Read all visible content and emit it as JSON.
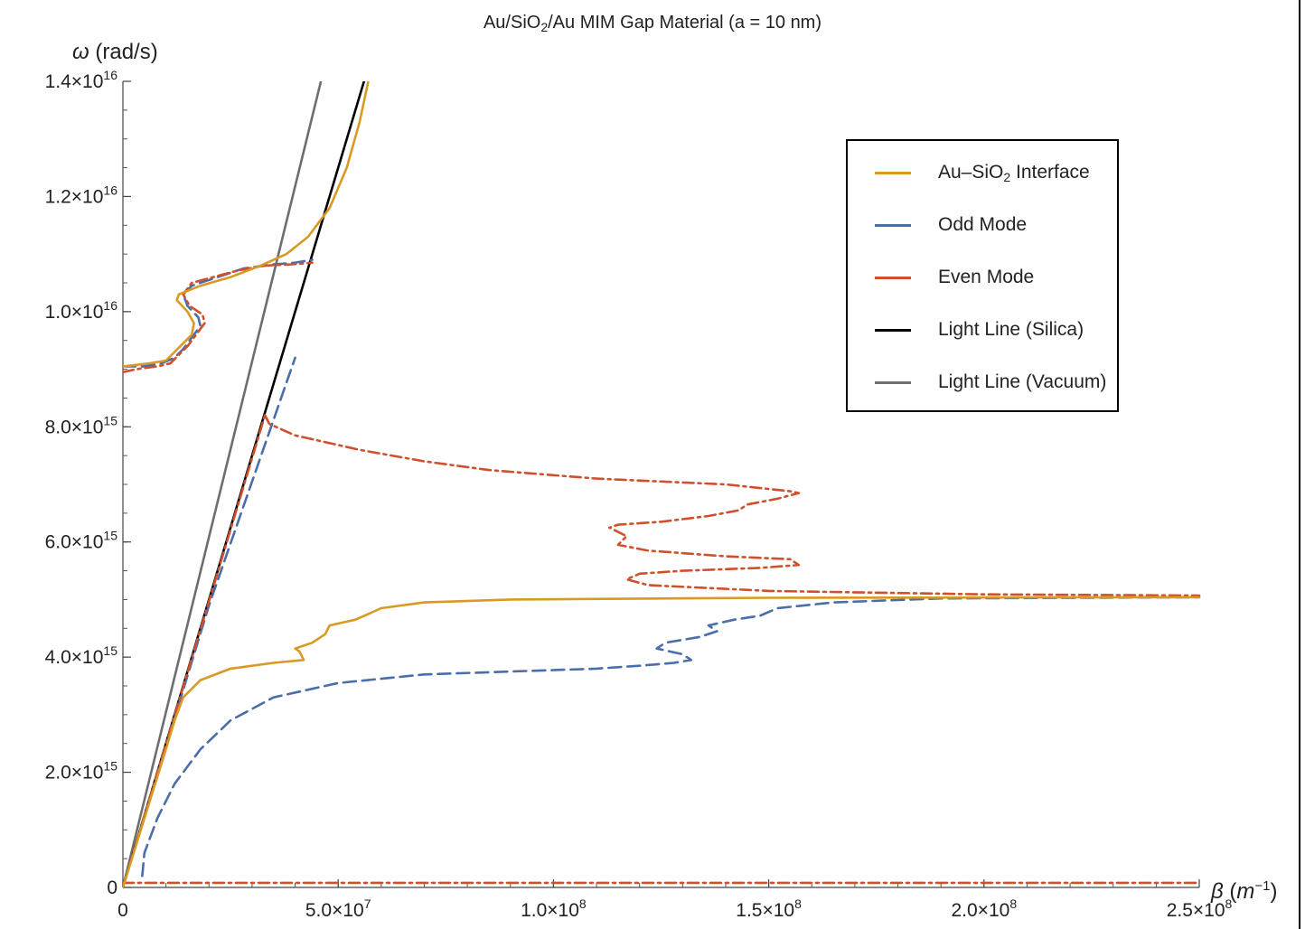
{
  "title": {
    "prefix": "Au/SiO",
    "sub": "2",
    "suffix": "/Au MIM Gap Material (a = 10 nm)"
  },
  "chart_data": {
    "type": "line",
    "xlabel": {
      "symbol": "β",
      "unit_open": " (",
      "unit_base": "m",
      "unit_exp": "−1",
      "unit_close": ")"
    },
    "ylabel": {
      "symbol": "ω",
      "unit": " (rad/s)"
    },
    "xlim": [
      0,
      250000000
    ],
    "ylim": [
      0,
      14000000000000000
    ],
    "xticks": [
      {
        "value": 0,
        "mant": "0",
        "exp": ""
      },
      {
        "value": 50000000,
        "mant": "5.0×10",
        "exp": "7"
      },
      {
        "value": 100000000,
        "mant": "1.0×10",
        "exp": "8"
      },
      {
        "value": 150000000,
        "mant": "1.5×10",
        "exp": "8"
      },
      {
        "value": 200000000,
        "mant": "2.0×10",
        "exp": "8"
      },
      {
        "value": 250000000,
        "mant": "2.5×10",
        "exp": "8"
      }
    ],
    "yticks": [
      {
        "value": 0,
        "mant": "0",
        "exp": ""
      },
      {
        "value": 2000000000000000,
        "mant": "2.0×10",
        "exp": "15"
      },
      {
        "value": 4000000000000000,
        "mant": "4.0×10",
        "exp": "15"
      },
      {
        "value": 6000000000000000,
        "mant": "6.0×10",
        "exp": "15"
      },
      {
        "value": 8000000000000000,
        "mant": "8.0×10",
        "exp": "15"
      },
      {
        "value": 10000000000000000,
        "mant": "1.0×10",
        "exp": "16"
      },
      {
        "value": 12000000000000000,
        "mant": "1.2×10",
        "exp": "16"
      },
      {
        "value": 14000000000000000,
        "mant": "1.4×10",
        "exp": "16"
      }
    ],
    "x_unit": 1000000,
    "y_unit": 1000000000000000,
    "legend_position": "top-right",
    "series": [
      {
        "name": "Light Line (Vacuum)",
        "color": "#6e6e6e",
        "dash": "solid",
        "segments": [
          [
            [
              0,
              0
            ],
            [
              46.0,
              14.0
            ]
          ]
        ]
      },
      {
        "name": "Light Line (Silica)",
        "color": "#000000",
        "dash": "solid",
        "segments": [
          [
            [
              0,
              0
            ],
            [
              56.0,
              14.0
            ]
          ]
        ]
      },
      {
        "name": "Odd Mode",
        "color": "#4a6ea9",
        "dash": "long-dash",
        "segments": [
          [
            [
              4.5,
              0.2
            ],
            [
              5,
              0.6
            ],
            [
              8,
              1.2
            ],
            [
              12,
              1.8
            ],
            [
              18,
              2.4
            ],
            [
              25,
              2.9
            ],
            [
              35,
              3.3
            ],
            [
              50,
              3.55
            ],
            [
              70,
              3.7
            ],
            [
              90,
              3.75
            ],
            [
              110,
              3.8
            ],
            [
              120,
              3.85
            ],
            [
              128,
              3.9
            ],
            [
              132,
              3.95
            ],
            [
              130,
              4.05
            ],
            [
              124,
              4.15
            ],
            [
              126,
              4.25
            ],
            [
              134,
              4.35
            ],
            [
              138,
              4.45
            ],
            [
              136,
              4.55
            ],
            [
              142,
              4.65
            ],
            [
              148,
              4.72
            ],
            [
              152,
              4.85
            ],
            [
              165,
              4.95
            ],
            [
              190,
              5.02
            ],
            [
              250,
              5.04
            ]
          ],
          [
            [
              0,
              0
            ],
            [
              20,
              4.9
            ],
            [
              40,
              9.2
            ]
          ],
          [
            [
              0,
              9.05
            ],
            [
              5,
              9.05
            ],
            [
              9,
              9.1
            ],
            [
              12,
              9.2
            ],
            [
              14,
              9.35
            ],
            [
              16,
              9.55
            ],
            [
              18,
              9.75
            ],
            [
              17.5,
              9.9
            ],
            [
              15,
              10.1
            ],
            [
              14,
              10.3
            ],
            [
              16,
              10.45
            ],
            [
              22,
              10.6
            ],
            [
              28,
              10.75
            ],
            [
              35,
              10.82
            ],
            [
              40,
              10.85
            ],
            [
              44,
              10.9
            ]
          ]
        ]
      },
      {
        "name": "Even Mode",
        "color": "#d0502e",
        "dash": "dash-dot",
        "segments": [
          [
            [
              0,
              0.08
            ],
            [
              250,
              0.08
            ]
          ],
          [
            [
              0,
              0
            ],
            [
              33,
              8.2
            ]
          ],
          [
            [
              0,
              8.95
            ],
            [
              3,
              9.0
            ],
            [
              8,
              9.05
            ],
            [
              11,
              9.1
            ],
            [
              13,
              9.25
            ],
            [
              15,
              9.4
            ],
            [
              17,
              9.6
            ],
            [
              19,
              9.8
            ],
            [
              18.5,
              9.95
            ],
            [
              15.5,
              10.1
            ],
            [
              14,
              10.3
            ],
            [
              16,
              10.5
            ],
            [
              21,
              10.6
            ],
            [
              27,
              10.72
            ],
            [
              33,
              10.8
            ],
            [
              39,
              10.82
            ],
            [
              44,
              10.85
            ]
          ],
          [
            [
              33,
              8.2
            ],
            [
              34,
              8.05
            ],
            [
              40,
              7.85
            ],
            [
              55,
              7.6
            ],
            [
              70,
              7.4
            ],
            [
              85,
              7.25
            ],
            [
              110,
              7.1
            ],
            [
              140,
              7.0
            ],
            [
              155,
              6.88
            ],
            [
              157,
              6.85
            ],
            [
              152,
              6.75
            ],
            [
              145,
              6.65
            ],
            [
              143,
              6.55
            ],
            [
              136,
              6.45
            ],
            [
              125,
              6.35
            ],
            [
              115,
              6.3
            ],
            [
              113,
              6.25
            ],
            [
              117,
              6.1
            ],
            [
              115,
              5.95
            ],
            [
              122,
              5.85
            ],
            [
              140,
              5.75
            ],
            [
              155,
              5.7
            ],
            [
              157,
              5.6
            ],
            [
              148,
              5.55
            ],
            [
              130,
              5.5
            ],
            [
              120,
              5.45
            ],
            [
              117,
              5.35
            ],
            [
              122,
              5.25
            ],
            [
              150,
              5.15
            ],
            [
              200,
              5.09
            ],
            [
              250,
              5.07
            ]
          ]
        ]
      },
      {
        "name": "Au–SiO2 Interface",
        "color": "#d89a22",
        "dash": "solid",
        "segments": [
          [
            [
              0,
              0
            ],
            [
              5,
              1.2
            ],
            [
              10,
              2.4
            ],
            [
              12,
              2.9
            ],
            [
              14,
              3.3
            ],
            [
              18,
              3.6
            ],
            [
              25,
              3.8
            ],
            [
              35,
              3.9
            ],
            [
              42,
              3.95
            ],
            [
              41,
              4.1
            ],
            [
              40,
              4.15
            ],
            [
              44,
              4.25
            ],
            [
              47,
              4.4
            ],
            [
              48,
              4.55
            ],
            [
              54,
              4.65
            ],
            [
              57,
              4.75
            ],
            [
              60,
              4.85
            ],
            [
              70,
              4.95
            ],
            [
              90,
              5.0
            ],
            [
              150,
              5.03
            ],
            [
              250,
              5.04
            ]
          ],
          [
            [
              0,
              9.05
            ],
            [
              6,
              9.1
            ],
            [
              10,
              9.15
            ],
            [
              12,
              9.3
            ],
            [
              14,
              9.45
            ],
            [
              16,
              9.6
            ],
            [
              16.5,
              9.8
            ],
            [
              15,
              10.0
            ],
            [
              12.5,
              10.2
            ],
            [
              13,
              10.3
            ],
            [
              18,
              10.45
            ],
            [
              25,
              10.6
            ],
            [
              32,
              10.8
            ],
            [
              38,
              11.0
            ],
            [
              43,
              11.3
            ],
            [
              48,
              11.8
            ],
            [
              52,
              12.5
            ],
            [
              55,
              13.3
            ],
            [
              57,
              14.0
            ]
          ]
        ]
      }
    ]
  },
  "legend": {
    "items": [
      {
        "name": "Au–SiO",
        "sub": "2",
        "tail": " Interface",
        "color": "#d89a22"
      },
      {
        "name": "Odd Mode",
        "sub": "",
        "tail": "",
        "color": "#4a6ea9"
      },
      {
        "name": "Even Mode",
        "sub": "",
        "tail": "",
        "color": "#d0502e"
      },
      {
        "name": "Light Line (Silica)",
        "sub": "",
        "tail": "",
        "color": "#000000"
      },
      {
        "name": "Light Line (Vacuum)",
        "sub": "",
        "tail": "",
        "color": "#6e6e6e"
      }
    ]
  }
}
